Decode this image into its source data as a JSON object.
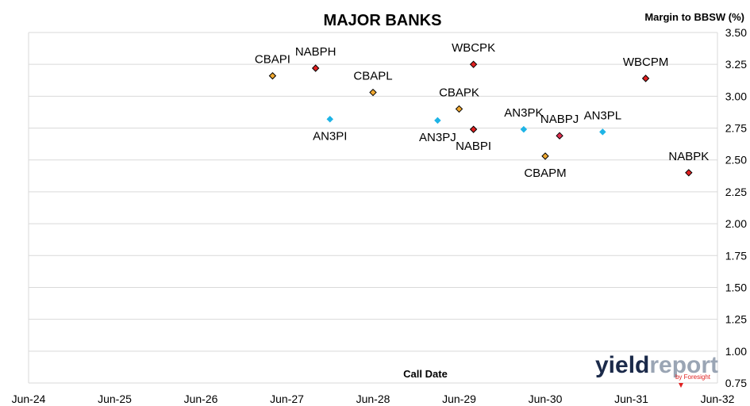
{
  "chart_data": {
    "type": "scatter",
    "title": "MAJOR BANKS",
    "ylabel": "Margin to BBSW (%)",
    "xlabel": "Call Date",
    "ylim": [
      0.75,
      3.5
    ],
    "yticks": [
      "0.75",
      "1.00",
      "1.25",
      "1.50",
      "1.75",
      "2.00",
      "2.25",
      "2.50",
      "2.75",
      "3.00",
      "3.25",
      "3.50"
    ],
    "y_axis_position": "right",
    "xlim": [
      "2024-06",
      "2032-06"
    ],
    "xticks": [
      "Jun-24",
      "Jun-25",
      "Jun-26",
      "Jun-27",
      "Jun-28",
      "Jun-29",
      "Jun-30",
      "Jun-31",
      "Jun-32"
    ],
    "grid": "horizontal",
    "points": [
      {
        "label": "CBAPI",
        "x": "2027-04",
        "y": 3.16,
        "color": "#F0A830",
        "marker": "diamond",
        "label_pos": "above"
      },
      {
        "label": "NABPH",
        "x": "2027-10",
        "y": 3.22,
        "color": "#E02020",
        "marker": "diamond",
        "label_pos": "above"
      },
      {
        "label": "AN3PI",
        "x": "2027-12",
        "y": 2.82,
        "color": "#1EB4E6",
        "marker": "diamond",
        "label_pos": "below"
      },
      {
        "label": "CBAPL",
        "x": "2028-06",
        "y": 3.03,
        "color": "#F0A830",
        "marker": "diamond",
        "label_pos": "above"
      },
      {
        "label": "AN3PJ",
        "x": "2029-03",
        "y": 2.81,
        "color": "#1EB4E6",
        "marker": "diamond",
        "label_pos": "below"
      },
      {
        "label": "CBAPK",
        "x": "2029-06",
        "y": 2.9,
        "color": "#F0A830",
        "marker": "diamond",
        "label_pos": "above"
      },
      {
        "label": "WBCPK",
        "x": "2029-08",
        "y": 3.25,
        "color": "#E02020",
        "marker": "diamond",
        "label_pos": "above"
      },
      {
        "label": "NABPI",
        "x": "2029-08",
        "y": 2.74,
        "color": "#E02020",
        "marker": "diamond",
        "label_pos": "below"
      },
      {
        "label": "AN3PK",
        "x": "2030-03",
        "y": 2.74,
        "color": "#1EB4E6",
        "marker": "diamond",
        "label_pos": "above"
      },
      {
        "label": "CBAPM",
        "x": "2030-06",
        "y": 2.53,
        "color": "#F0A830",
        "marker": "diamond",
        "label_pos": "below"
      },
      {
        "label": "NABPJ",
        "x": "2030-08",
        "y": 2.69,
        "color": "#E03050",
        "marker": "diamond",
        "label_pos": "above"
      },
      {
        "label": "AN3PL",
        "x": "2031-02",
        "y": 2.72,
        "color": "#1EB4E6",
        "marker": "diamond",
        "label_pos": "above"
      },
      {
        "label": "WBCPM",
        "x": "2031-08",
        "y": 3.14,
        "color": "#E02020",
        "marker": "diamond",
        "label_pos": "above"
      },
      {
        "label": "NABPK",
        "x": "2032-02",
        "y": 2.4,
        "color": "#E02020",
        "marker": "diamond",
        "label_pos": "above"
      }
    ]
  },
  "logo": {
    "text_part1": "yield",
    "text_part2": "report",
    "byline": "by Foresight",
    "color_part1": "#1B2A4A",
    "color_part2": "#9AA5B4",
    "accent": "#E02020"
  },
  "colors": {
    "grid": "#D9D9D9",
    "frame": "#D9D9D9"
  }
}
